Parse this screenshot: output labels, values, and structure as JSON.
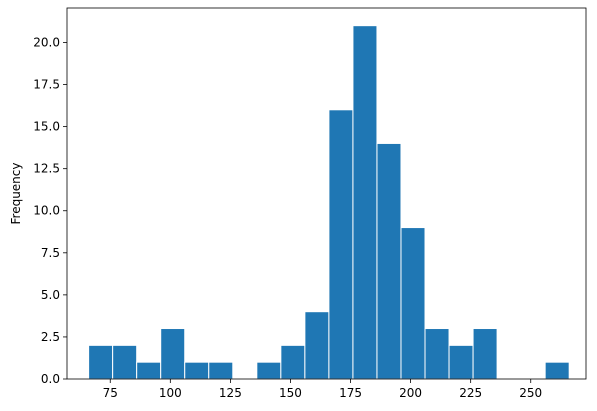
{
  "chart_data": {
    "type": "histogram",
    "title": "",
    "xlabel": "",
    "ylabel": "Frequency",
    "xlim": [
      57,
      273
    ],
    "ylim": [
      0,
      22.05
    ],
    "grid": false,
    "bar_color": "#1f77b4",
    "edge_color": "#ffffff",
    "x_ticks": [
      {
        "value": 75,
        "label": "75"
      },
      {
        "value": 100,
        "label": "100"
      },
      {
        "value": 125,
        "label": "125"
      },
      {
        "value": 150,
        "label": "150"
      },
      {
        "value": 175,
        "label": "175"
      },
      {
        "value": 200,
        "label": "200"
      },
      {
        "value": 225,
        "label": "225"
      },
      {
        "value": 250,
        "label": "250"
      }
    ],
    "y_ticks": [
      {
        "value": 0,
        "label": "0.0"
      },
      {
        "value": 2.5,
        "label": "2.5"
      },
      {
        "value": 5,
        "label": "5.0"
      },
      {
        "value": 7.5,
        "label": "7.5"
      },
      {
        "value": 10,
        "label": "10.0"
      },
      {
        "value": 12.5,
        "label": "12.5"
      },
      {
        "value": 15,
        "label": "15.0"
      },
      {
        "value": 17.5,
        "label": "17.5"
      },
      {
        "value": 20,
        "label": "20.0"
      }
    ],
    "bin_edges": [
      66,
      76,
      86,
      96,
      106,
      116,
      126,
      136,
      146,
      156,
      166,
      176,
      186,
      196,
      206,
      216,
      226,
      236,
      246,
      256,
      266
    ],
    "counts": [
      2,
      2,
      1,
      3,
      1,
      1,
      0,
      1,
      2,
      4,
      16,
      21,
      14,
      9,
      3,
      2,
      3,
      0,
      0,
      1
    ]
  }
}
